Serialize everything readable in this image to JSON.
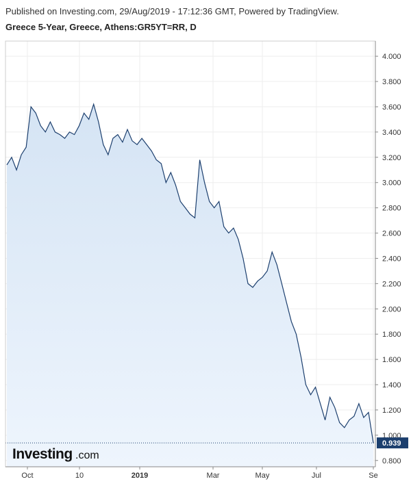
{
  "published": "Published on Investing.com, 29/Aug/2019 - 17:12:36 GMT, Powered by TradingView.",
  "logo": {
    "main": "Investing",
    "suffix": ".com"
  },
  "chart_data": {
    "type": "area",
    "title": "Greece 5-Year, Greece, Athens:GR5YT=RR, D",
    "color": "#1c3f6e",
    "fill": "#d7e6f5",
    "grid": true,
    "values": [
      3.14,
      3.2,
      3.1,
      3.22,
      3.28,
      3.6,
      3.55,
      3.45,
      3.4,
      3.48,
      3.4,
      3.38,
      3.35,
      3.4,
      3.38,
      3.45,
      3.55,
      3.5,
      3.62,
      3.48,
      3.3,
      3.22,
      3.35,
      3.38,
      3.32,
      3.42,
      3.33,
      3.3,
      3.35,
      3.3,
      3.25,
      3.18,
      3.15,
      3.0,
      3.08,
      2.98,
      2.85,
      2.8,
      2.75,
      2.72,
      3.18,
      3.0,
      2.85,
      2.8,
      2.85,
      2.65,
      2.6,
      2.64,
      2.55,
      2.4,
      2.2,
      2.17,
      2.22,
      2.25,
      2.3,
      2.45,
      2.35,
      2.2,
      2.05,
      1.9,
      1.8,
      1.62,
      1.4,
      1.32,
      1.38,
      1.25,
      1.12,
      1.3,
      1.22,
      1.1,
      1.06,
      1.12,
      1.15,
      1.25,
      1.14,
      1.18,
      0.939
    ],
    "last_label": "0.939",
    "xlim": [
      0,
      76
    ],
    "xticks": [
      {
        "value": 4.26,
        "label": "Oct"
      },
      {
        "value": 15.06,
        "label": "10"
      },
      {
        "value": 27.56,
        "label": "2019"
      },
      {
        "value": 42.76,
        "label": "Mar"
      },
      {
        "value": 52.98,
        "label": "May"
      },
      {
        "value": 64.2,
        "label": "Jul"
      },
      {
        "value": 76,
        "label": "Se"
      }
    ],
    "ylim": [
      0.75,
      4.12
    ],
    "yticks": [
      {
        "value": 0.8,
        "label": "0.800"
      },
      {
        "value": 1.0,
        "label": "1.000"
      },
      {
        "value": 1.2,
        "label": "1.200"
      },
      {
        "value": 1.4,
        "label": "1.400"
      },
      {
        "value": 1.6,
        "label": "1.600"
      },
      {
        "value": 1.8,
        "label": "1.800"
      },
      {
        "value": 2.0,
        "label": "2.000"
      },
      {
        "value": 2.2,
        "label": "2.200"
      },
      {
        "value": 2.4,
        "label": "2.400"
      },
      {
        "value": 2.6,
        "label": "2.600"
      },
      {
        "value": 2.8,
        "label": "2.800"
      },
      {
        "value": 3.0,
        "label": "3.000"
      },
      {
        "value": 3.2,
        "label": "3.200"
      },
      {
        "value": 3.4,
        "label": "3.400"
      },
      {
        "value": 3.6,
        "label": "3.600"
      },
      {
        "value": 3.8,
        "label": "3.800"
      },
      {
        "value": 4.0,
        "label": "4.000"
      }
    ]
  }
}
